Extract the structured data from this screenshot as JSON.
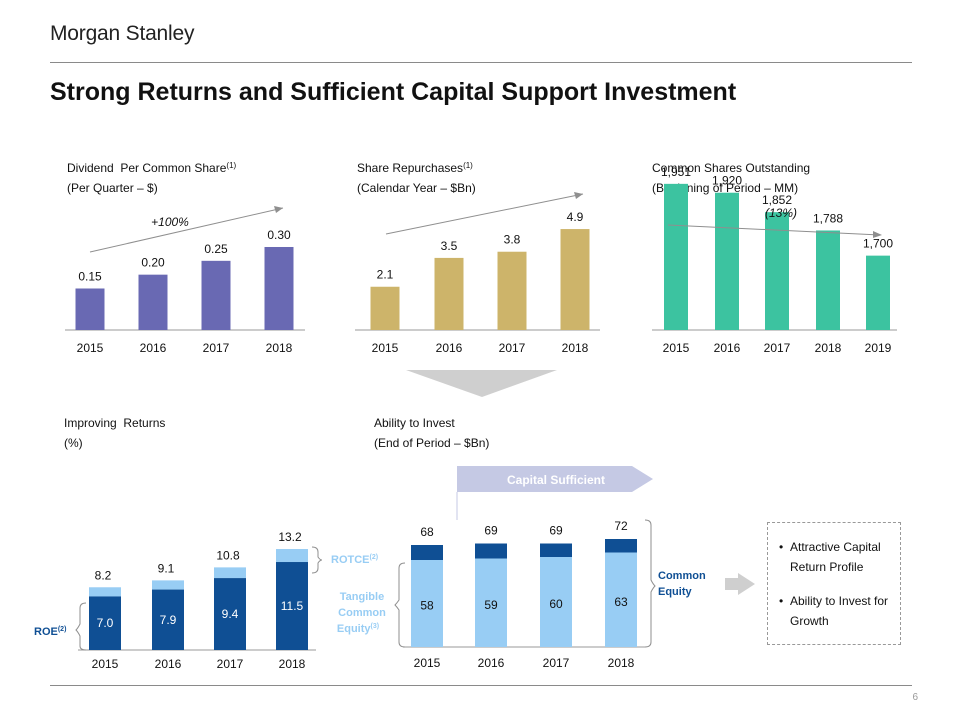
{
  "header": {
    "logo": "Morgan Stanley",
    "title": "Strong Returns and Sufficient Capital Support Investment"
  },
  "footer": {
    "page_number": "6"
  },
  "colors": {
    "purple": "#6969b3",
    "gold": "#cdb46a",
    "green": "#3cc3a0",
    "dark_blue": "#0f4f94",
    "light_blue": "#98cdf4",
    "gray_arrow": "#cfcfcf",
    "label_blue": "#4d7fc0",
    "banner": "#c5c9e4",
    "rule": "#8a8a8a"
  },
  "panels": {
    "dividend": {
      "title": "Dividend  Per Common Share",
      "note": "(1)",
      "subtitle": "(Per Quarter – $)",
      "annotation": "+100%"
    },
    "repurchase": {
      "title": "Share Repurchases",
      "note": "(1)",
      "subtitle": "(Calendar Year – $Bn)"
    },
    "shares": {
      "title": "Common Shares Outstanding",
      "subtitle": "(Beginning of Period – MM)",
      "annotation": "(13%)"
    },
    "returns": {
      "title": "Improving  Returns",
      "subtitle": "(%)"
    },
    "invest": {
      "title": "Ability to Invest",
      "subtitle": "(End of Period – $Bn)",
      "banner": "Capital Sufficient"
    }
  },
  "chart_data": [
    {
      "type": "bar",
      "title": "Dividend Per Common Share",
      "categories": [
        "2015",
        "2016",
        "2017",
        "2018"
      ],
      "values": [
        0.15,
        0.2,
        0.25,
        0.3
      ],
      "labels": [
        "0.15",
        "0.20",
        "0.25",
        "0.30"
      ],
      "color": "#6969b3"
    },
    {
      "type": "bar",
      "title": "Share Repurchases",
      "categories": [
        "2015",
        "2016",
        "2017",
        "2018"
      ],
      "values": [
        2.1,
        3.5,
        3.8,
        4.9
      ],
      "labels": [
        "2.1",
        "3.5",
        "3.8",
        "4.9"
      ],
      "color": "#cdb46a"
    },
    {
      "type": "bar",
      "title": "Common Shares Outstanding",
      "categories": [
        "2015",
        "2016",
        "2017",
        "2018",
        "2019"
      ],
      "values": [
        1951,
        1920,
        1852,
        1788,
        1700
      ],
      "labels": [
        "1,951",
        "1,920",
        "1,852",
        "1,788",
        "1,700"
      ],
      "color": "#3cc3a0"
    },
    {
      "type": "bar",
      "title": "Improving Returns",
      "categories": [
        "2015",
        "2016",
        "2017",
        "2018"
      ],
      "series": [
        {
          "name": "ROE",
          "note": "(2)",
          "values": [
            7.0,
            7.9,
            9.4,
            11.5
          ],
          "labels": [
            "7.0",
            "7.9",
            "9.4",
            "11.5"
          ],
          "color": "#0f4f94"
        },
        {
          "name": "ROTCE",
          "note": "(2)",
          "values": [
            8.2,
            9.1,
            10.8,
            13.2
          ],
          "labels": [
            "8.2",
            "9.1",
            "10.8",
            "13.2"
          ],
          "color": "#98cdf4"
        }
      ]
    },
    {
      "type": "bar",
      "title": "Ability to Invest",
      "categories": [
        "2015",
        "2016",
        "2017",
        "2018"
      ],
      "series": [
        {
          "name": "Tangible Common Equity",
          "note": "(3)",
          "values": [
            58,
            59,
            60,
            63
          ],
          "labels": [
            "58",
            "59",
            "60",
            "63"
          ],
          "color": "#98cdf4"
        },
        {
          "name": "Common Equity",
          "values": [
            68,
            69,
            69,
            72
          ],
          "labels": [
            "68",
            "69",
            "69",
            "72"
          ],
          "color": "#0f4f94"
        }
      ]
    }
  ],
  "legend": {
    "rotce": "ROTCE",
    "rotce_note": "(2)",
    "roe": "ROE",
    "roe_note": "(2)",
    "tce_line1": "Tangible",
    "tce_line2": "Common",
    "tce_line3": "Equity",
    "tce_note": "(3)",
    "ce_line1": "Common",
    "ce_line2": "Equity"
  },
  "callout": {
    "items": [
      "Attractive Capital Return Profile",
      "Ability to Invest for Growth"
    ]
  }
}
